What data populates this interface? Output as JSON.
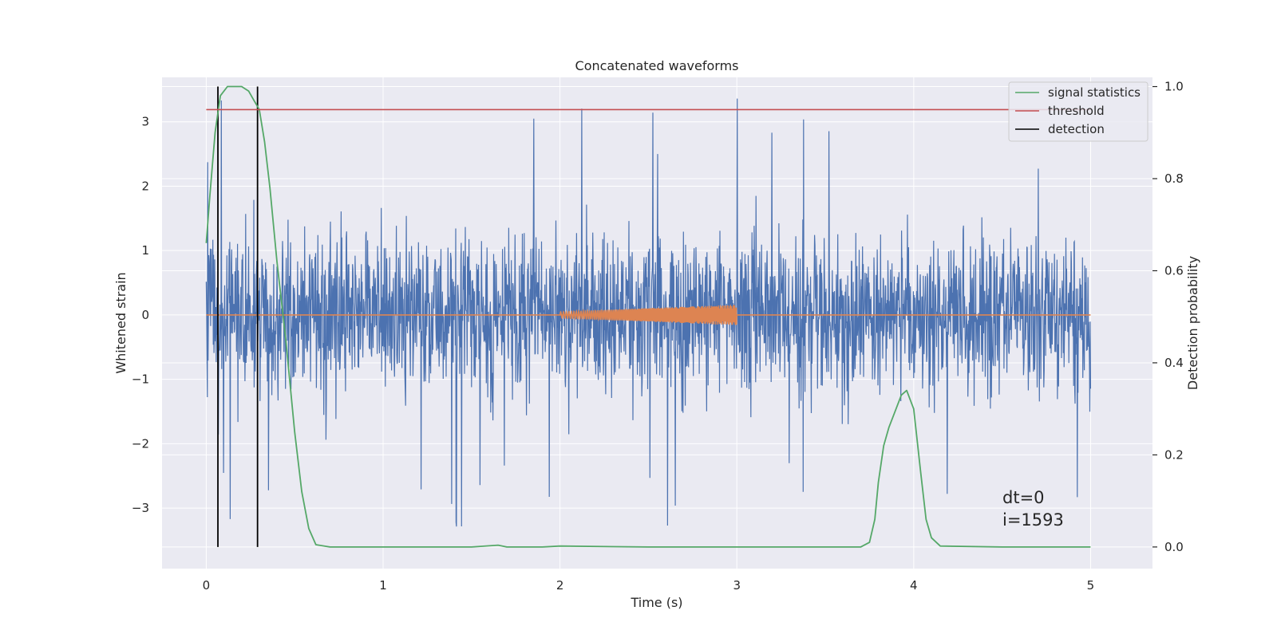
{
  "chart_data": {
    "type": "line",
    "title": "Concatenated waveforms",
    "xlabel": "Time (s)",
    "ylabel": "Whitened strain",
    "ylabel_right": "Detection probability",
    "xlim": [
      -0.25,
      5.35
    ],
    "ylim": [
      -3.94,
      3.69
    ],
    "ylim_right": [
      -0.047,
      1.02
    ],
    "x_ticks": [
      0,
      1,
      2,
      3,
      4,
      5
    ],
    "y_ticks": [
      -3,
      -2,
      -1,
      0,
      1,
      2,
      3
    ],
    "y_ticks_right": [
      0.0,
      0.2,
      0.4,
      0.6,
      0.8,
      1.0
    ],
    "grid": true,
    "legend_position": "upper right",
    "colors": {
      "strain": "#4c72b0",
      "injected": "#dd8452",
      "signal_statistics": "#55a868",
      "threshold": "#c44e52",
      "detection": "#000000",
      "background": "#eaeaf2",
      "grid": "#ffffff"
    },
    "series": [
      {
        "name": "",
        "kind": "strain_noise",
        "axis": "left",
        "x_start": 0,
        "x_end": 5,
        "typical_range": [
          -1.2,
          1.2
        ],
        "min": -3.6,
        "max": 3.5
      },
      {
        "name": "",
        "kind": "injected_chirp",
        "axis": "left",
        "x_start": 2.0,
        "x_end": 3.0,
        "amplitude_start": 0.05,
        "amplitude_end": 0.16
      },
      {
        "name": "signal statistics",
        "axis": "right",
        "x": [
          0,
          0.02,
          0.05,
          0.08,
          0.12,
          0.16,
          0.2,
          0.24,
          0.27,
          0.3,
          0.33,
          0.36,
          0.4,
          0.45,
          0.5,
          0.54,
          0.58,
          0.62,
          0.7,
          1.0,
          1.5,
          1.65,
          1.7,
          1.75,
          1.9,
          2.0,
          2.5,
          3.0,
          3.5,
          3.7,
          3.75,
          3.78,
          3.8,
          3.83,
          3.86,
          3.9,
          3.93,
          3.96,
          4.0,
          4.04,
          4.07,
          4.1,
          4.15,
          4.5,
          5.0
        ],
        "values": [
          0.66,
          0.76,
          0.9,
          0.98,
          1.0,
          1.0,
          1.0,
          0.99,
          0.97,
          0.95,
          0.88,
          0.78,
          0.62,
          0.45,
          0.25,
          0.12,
          0.04,
          0.005,
          0.0,
          0.0,
          0.0,
          0.004,
          0.0,
          0.0,
          0.0,
          0.002,
          0.0,
          0.0,
          0.0,
          0.0,
          0.01,
          0.06,
          0.14,
          0.22,
          0.26,
          0.3,
          0.33,
          0.34,
          0.3,
          0.16,
          0.06,
          0.02,
          0.002,
          0.0,
          0.0
        ]
      },
      {
        "name": "threshold",
        "axis": "right",
        "x": [
          0,
          5
        ],
        "values": [
          0.95,
          0.95
        ]
      },
      {
        "name": "detection",
        "axis": "right",
        "x_positions": [
          0.066,
          0.29
        ],
        "y_range": [
          0.0,
          1.0
        ]
      }
    ],
    "annotations": [
      "dt=0",
      "i=1593"
    ]
  }
}
